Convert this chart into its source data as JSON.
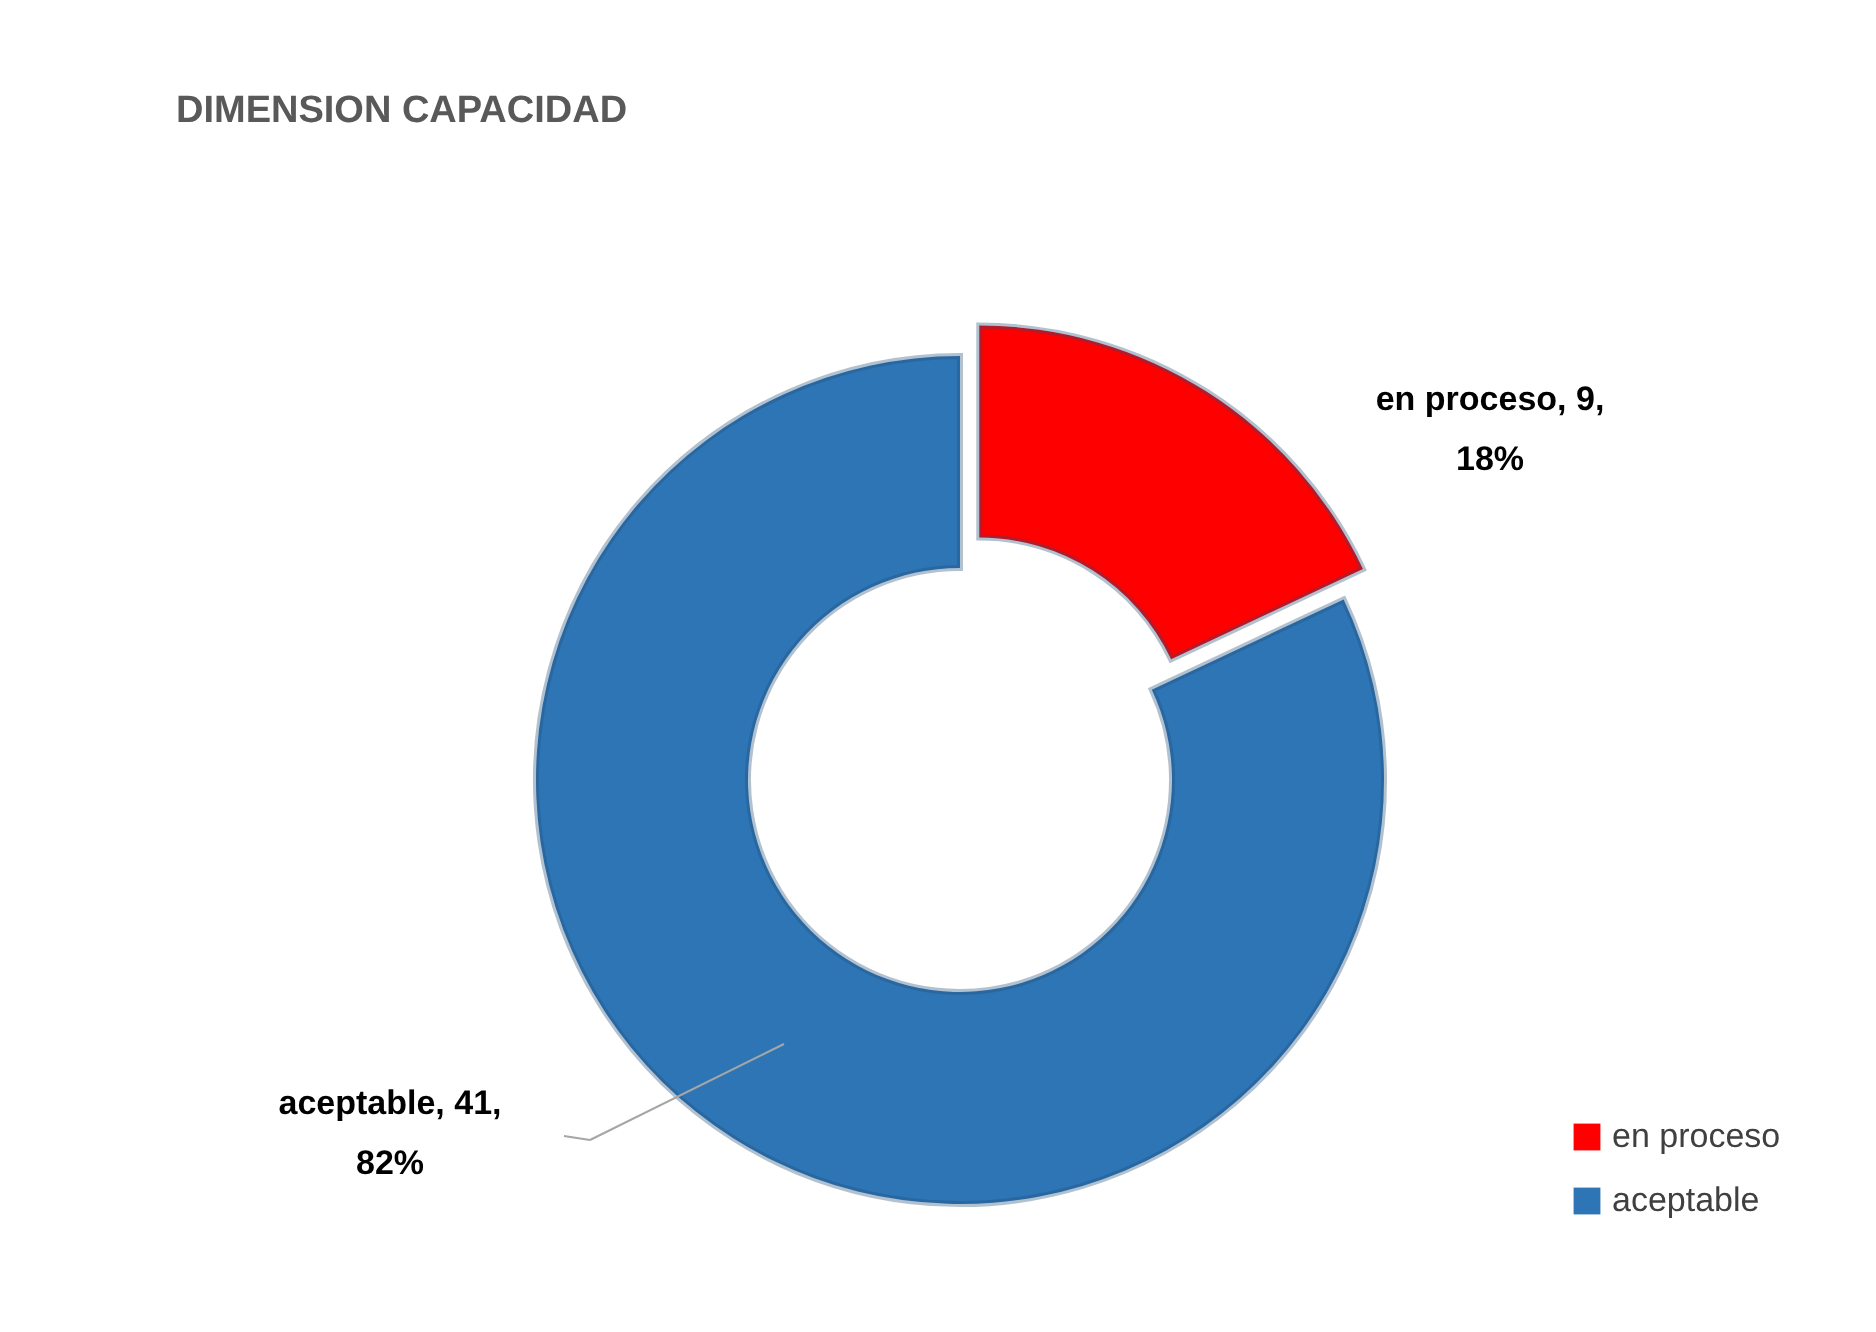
{
  "chart_data": {
    "type": "donut",
    "title": "DIMENSION CAPACIDAD",
    "categories": [
      "en proceso",
      "aceptable"
    ],
    "values": [
      9,
      41
    ],
    "colors": [
      "#ff0000",
      "#2e75b6"
    ],
    "value_labels": [
      "en proceso, 9, 18%",
      "aceptable, 41, 82%"
    ],
    "legend": "bottom right"
  }
}
